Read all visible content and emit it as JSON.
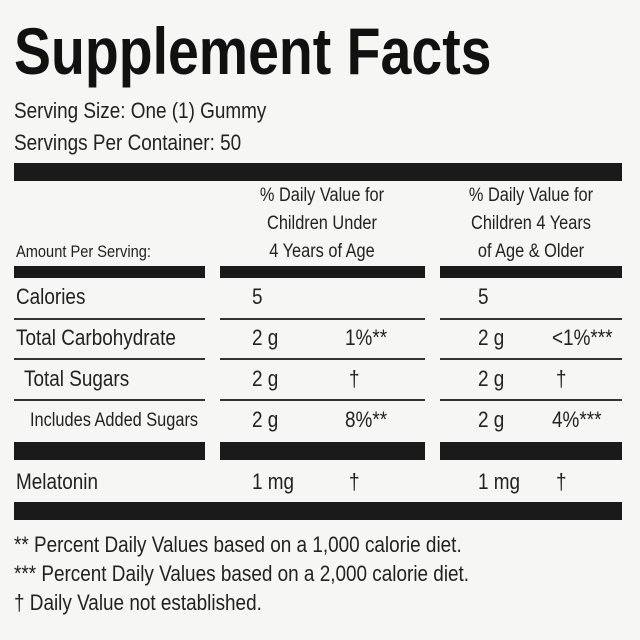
{
  "title": "Supplement Facts",
  "serving_size": "Serving Size: One (1) Gummy",
  "servings_per_container": "Servings Per Container: 50",
  "header": {
    "amount_per_serving": "Amount Per Serving:",
    "under_4": [
      "% Daily Value for",
      "Children Under",
      "4 Years of Age"
    ],
    "over_4": [
      "% Daily Value for",
      "Children 4 Years",
      "of Age & Older"
    ]
  },
  "rows": [
    {
      "label": "Calories",
      "under_4": {
        "amount": "5"
      },
      "over_4": {
        "amount": "5"
      }
    },
    {
      "label": "Total Carbohydrate",
      "under_4": {
        "amount": "2 g",
        "dv": "1%**"
      },
      "over_4": {
        "amount": "2 g",
        "dv": "<1%***"
      }
    },
    {
      "label": "Total Sugars",
      "under_4": {
        "amount": "2 g",
        "dv": "†"
      },
      "over_4": {
        "amount": "2 g",
        "dv": "†"
      }
    },
    {
      "label": "Includes Added Sugars",
      "under_4": {
        "amount": "2 g",
        "dv": "8%**"
      },
      "over_4": {
        "amount": "2 g",
        "dv": "4%***"
      }
    },
    {
      "label": "Melatonin",
      "under_4": {
        "amount": "1 mg",
        "dv": "†"
      },
      "over_4": {
        "amount": "1 mg",
        "dv": "†"
      }
    }
  ],
  "footnotes": [
    "** Percent Daily Values based on a 1,000 calorie diet.",
    "*** Percent Daily Values based on a 2,000 calorie diet.",
    "† Daily Value not established."
  ]
}
